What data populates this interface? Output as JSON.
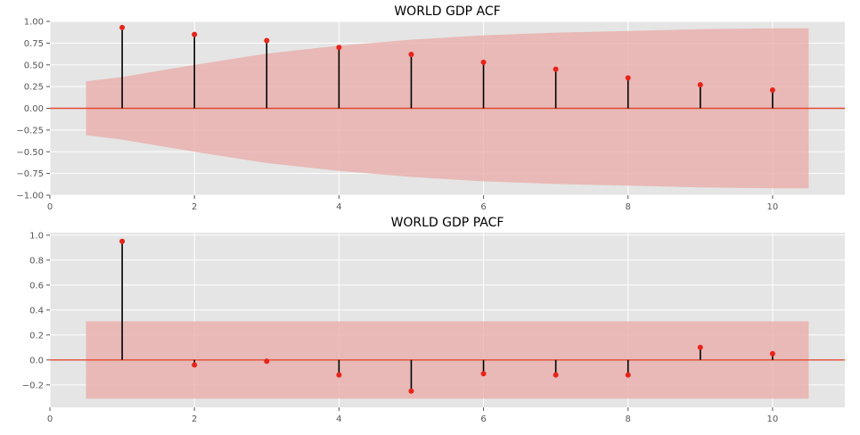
{
  "colors": {
    "panel_background": "#e5e5e5",
    "grid": "#ffffff",
    "confidence_band": "#e8a9a5",
    "zero_line": "#e24a33",
    "stem": "#000000",
    "marker": "#e8231a"
  },
  "chart_data": [
    {
      "type": "stem",
      "title": "WORLD GDP ACF",
      "xlabel": "",
      "ylabel": "",
      "xlim": [
        0,
        11
      ],
      "ylim": [
        -1.0,
        1.0
      ],
      "xticks": [
        0,
        2,
        4,
        6,
        8,
        10
      ],
      "xtick_labels": [
        "0",
        "2",
        "4",
        "6",
        "8",
        "10"
      ],
      "yticks": [
        -1.0,
        -0.75,
        -0.5,
        -0.25,
        0.0,
        0.25,
        0.5,
        0.75,
        1.0
      ],
      "ytick_labels": [
        "−1.00",
        "−0.75",
        "−0.50",
        "−0.25",
        "0.00",
        "0.25",
        "0.50",
        "0.75",
        "1.00"
      ],
      "grid": true,
      "lags": [
        1,
        2,
        3,
        4,
        5,
        6,
        7,
        8,
        9,
        10
      ],
      "values": [
        0.93,
        0.85,
        0.78,
        0.7,
        0.62,
        0.53,
        0.45,
        0.35,
        0.27,
        0.21
      ],
      "confidence_band": {
        "x": [
          0.5,
          1,
          2,
          3,
          4,
          5,
          6,
          7,
          8,
          9,
          10,
          10.5
        ],
        "upper": [
          0.31,
          0.36,
          0.5,
          0.63,
          0.72,
          0.79,
          0.84,
          0.87,
          0.89,
          0.91,
          0.92,
          0.92
        ]
      }
    },
    {
      "type": "stem",
      "title": "WORLD GDP PACF",
      "xlabel": "",
      "ylabel": "",
      "xlim": [
        0,
        11
      ],
      "ylim": [
        -0.38,
        1.02
      ],
      "xticks": [
        0,
        2,
        4,
        6,
        8,
        10
      ],
      "xtick_labels": [
        "0",
        "2",
        "4",
        "6",
        "8",
        "10"
      ],
      "yticks": [
        -0.2,
        0.0,
        0.2,
        0.4,
        0.6,
        0.8,
        1.0
      ],
      "ytick_labels": [
        "−0.2",
        "0.0",
        "0.2",
        "0.4",
        "0.6",
        "0.8",
        "1.0"
      ],
      "grid": true,
      "lags": [
        1,
        2,
        3,
        4,
        5,
        6,
        7,
        8,
        9,
        10
      ],
      "values": [
        0.95,
        -0.04,
        -0.01,
        -0.12,
        -0.25,
        -0.11,
        -0.12,
        -0.12,
        0.1,
        0.05
      ],
      "confidence_band": {
        "x": [
          0.5,
          10.5
        ],
        "upper": [
          0.31,
          0.31
        ]
      }
    }
  ]
}
